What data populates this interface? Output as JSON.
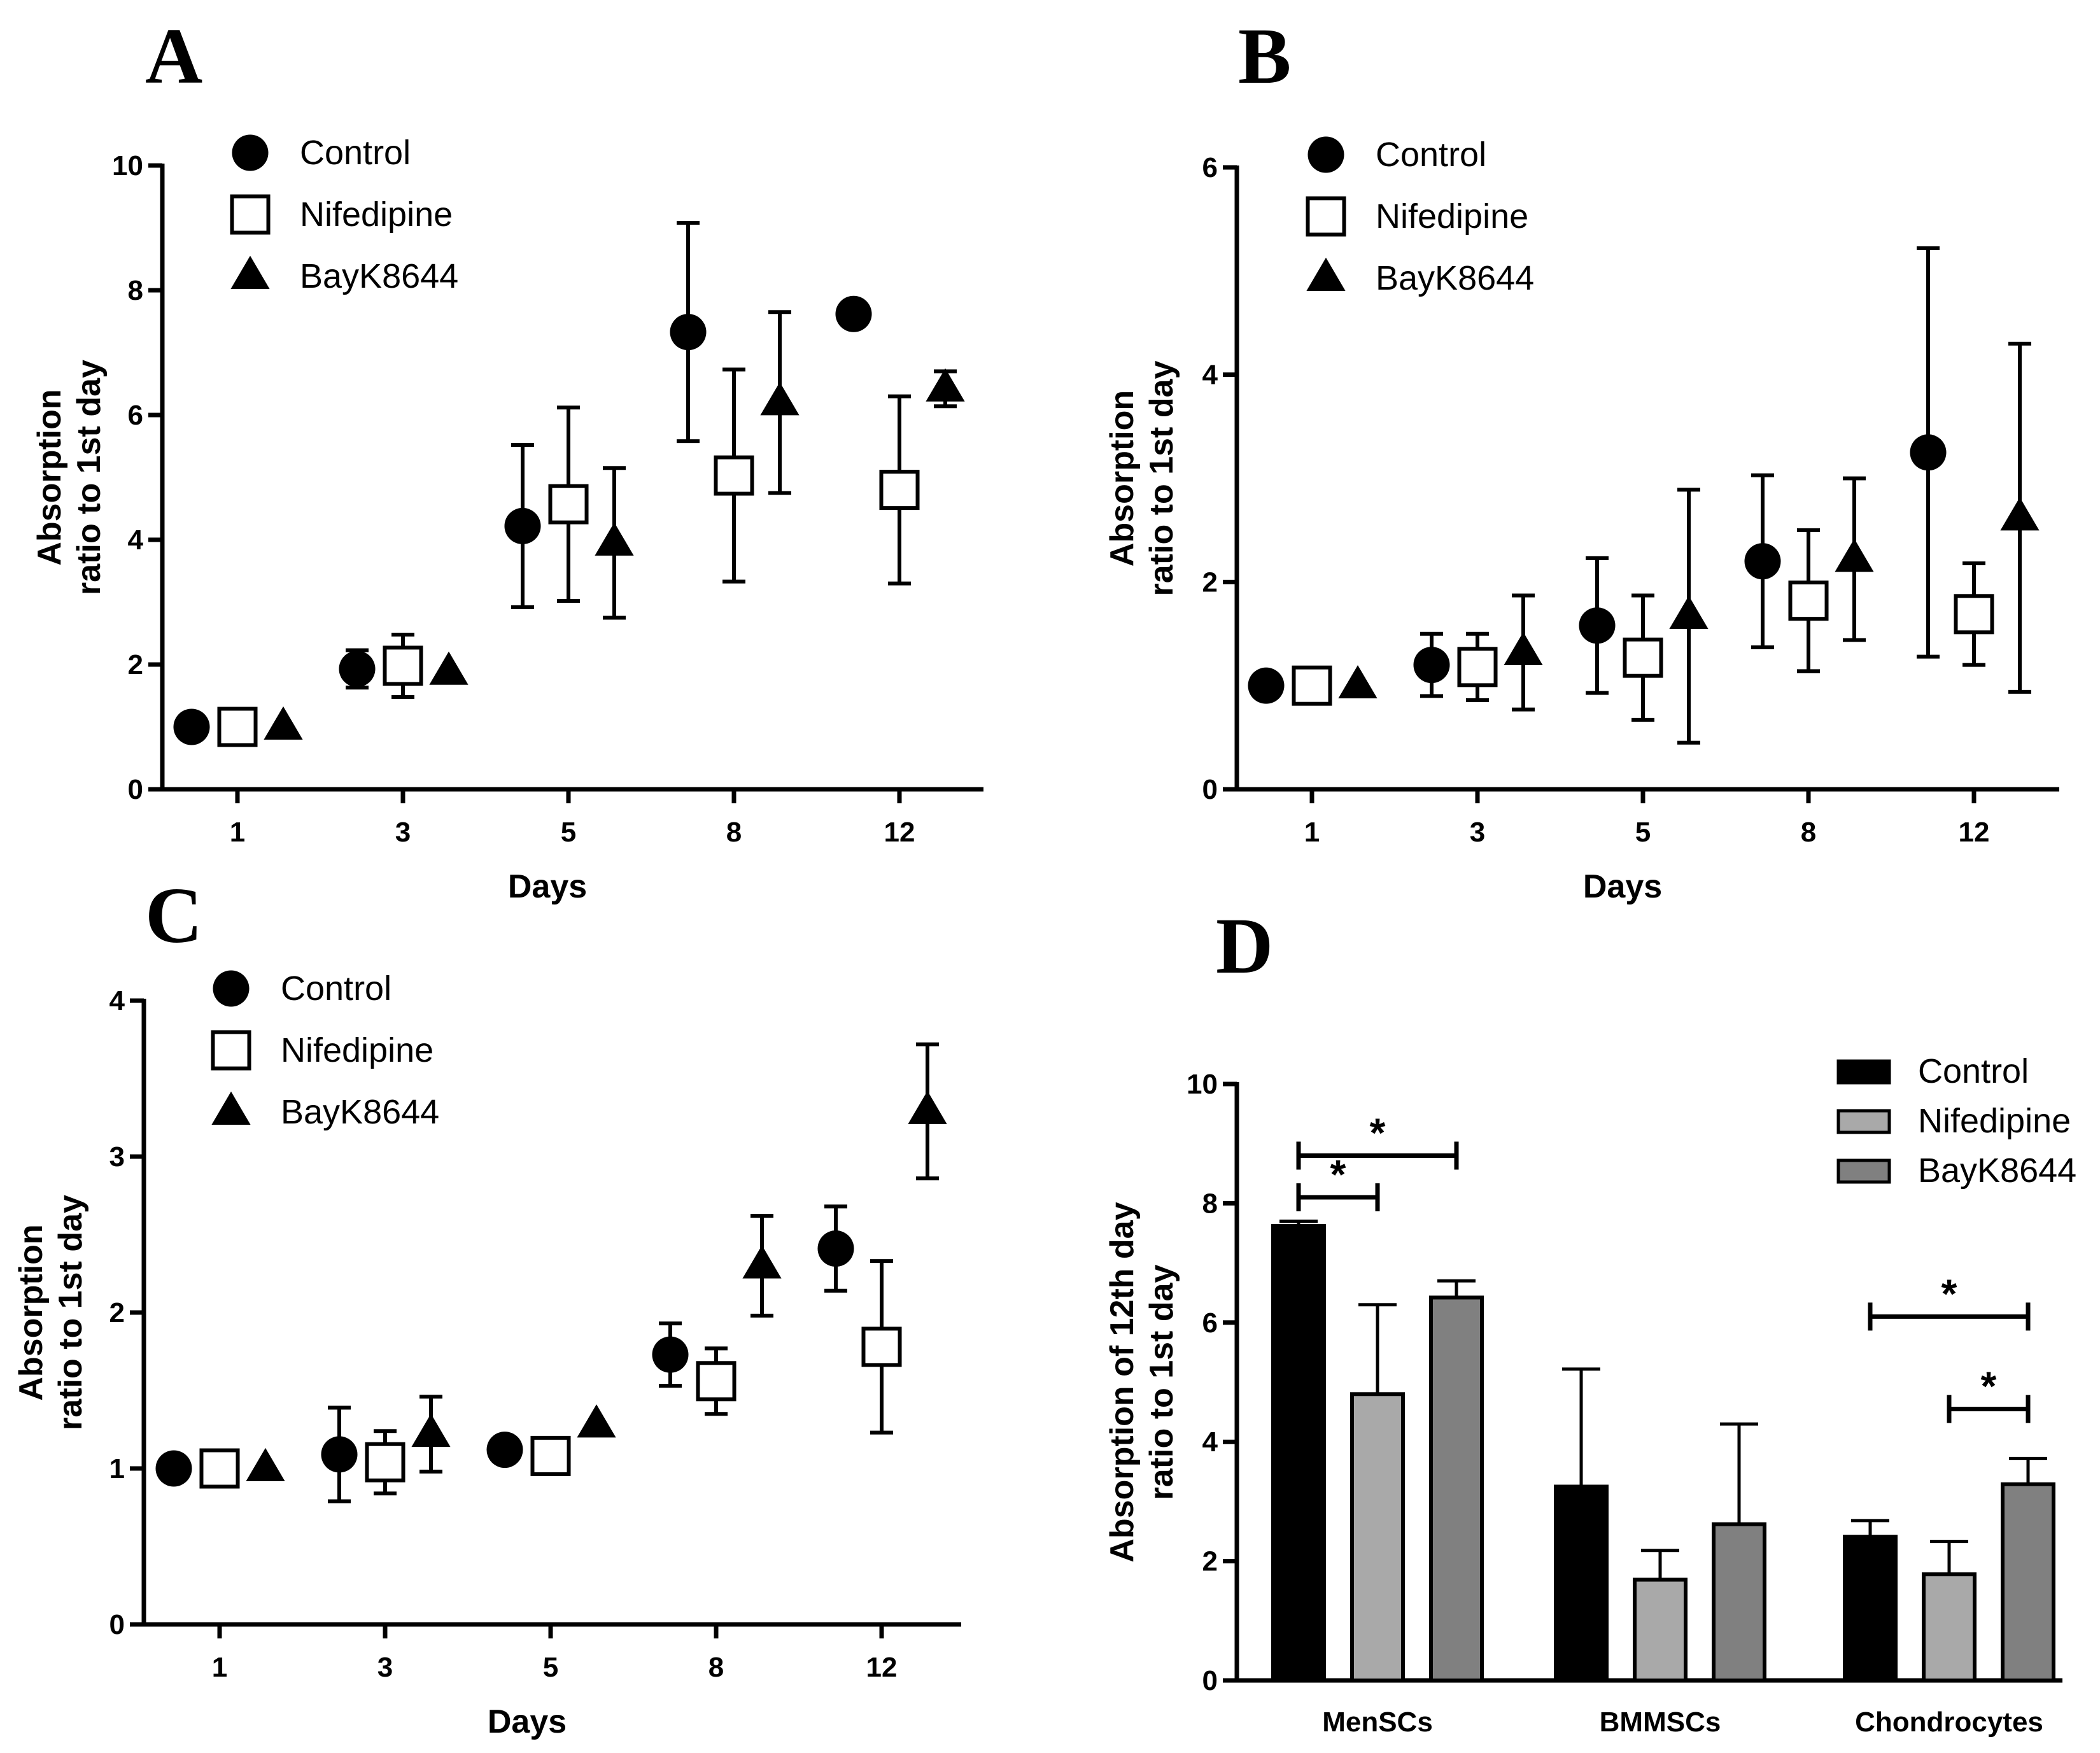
{
  "chart_data": [
    {
      "panel": "A",
      "type": "scatter",
      "title": "",
      "xlabel": "Days",
      "ylabel": [
        "Absorption",
        "ratio to 1st day"
      ],
      "ylim": [
        0,
        10
      ],
      "yticks": [
        "0",
        "2",
        "4",
        "6",
        "8",
        "10"
      ],
      "categories": [
        "1",
        "3",
        "5",
        "8",
        "12"
      ],
      "series": [
        {
          "name": "Control",
          "marker": "circle",
          "values": [
            1.0,
            1.93,
            4.22,
            7.33,
            7.62
          ],
          "err": [
            0,
            0.3,
            1.3,
            1.75,
            0
          ]
        },
        {
          "name": "Nifedipine",
          "marker": "square",
          "values": [
            1.0,
            1.98,
            4.57,
            5.03,
            4.8
          ],
          "err": [
            0,
            0.5,
            1.55,
            1.7,
            1.5
          ]
        },
        {
          "name": "BayK8644",
          "marker": "triangle",
          "values": [
            1.0,
            1.88,
            3.95,
            6.2,
            6.42
          ],
          "err": [
            0,
            0,
            1.2,
            1.45,
            0.28
          ]
        }
      ]
    },
    {
      "panel": "B",
      "type": "scatter",
      "title": "",
      "xlabel": "Days",
      "ylabel": [
        "Absorption",
        "ratio to 1st day"
      ],
      "ylim": [
        0,
        6
      ],
      "yticks": [
        "0",
        "2",
        "4",
        "6"
      ],
      "categories": [
        "1",
        "3",
        "5",
        "8",
        "12"
      ],
      "series": [
        {
          "name": "Control",
          "marker": "circle",
          "values": [
            1.0,
            1.2,
            1.58,
            2.2,
            3.25
          ],
          "err": [
            0,
            0.3,
            0.65,
            0.83,
            1.97
          ]
        },
        {
          "name": "Nifedipine",
          "marker": "square",
          "values": [
            1.0,
            1.18,
            1.27,
            1.82,
            1.69
          ],
          "err": [
            0,
            0.32,
            0.6,
            0.68,
            0.49
          ]
        },
        {
          "name": "BayK8644",
          "marker": "triangle",
          "values": [
            1.0,
            1.32,
            1.67,
            2.22,
            2.62
          ],
          "err": [
            0,
            0.55,
            1.22,
            0.78,
            1.68
          ]
        }
      ]
    },
    {
      "panel": "C",
      "type": "scatter",
      "title": "",
      "xlabel": "Days",
      "ylabel": [
        "Absorption",
        "ratio to 1st day"
      ],
      "ylim": [
        0,
        4
      ],
      "yticks": [
        "0",
        "1",
        "2",
        "3",
        "4"
      ],
      "categories": [
        "1",
        "3",
        "5",
        "8",
        "12"
      ],
      "series": [
        {
          "name": "Control",
          "marker": "circle",
          "values": [
            1.0,
            1.09,
            1.12,
            1.73,
            2.41
          ],
          "err": [
            0,
            0.3,
            0,
            0.2,
            0.27
          ]
        },
        {
          "name": "Nifedipine",
          "marker": "square",
          "values": [
            1.0,
            1.04,
            1.08,
            1.56,
            1.78
          ],
          "err": [
            0,
            0.2,
            0.06,
            0.21,
            0.55
          ]
        },
        {
          "name": "BayK8644",
          "marker": "triangle",
          "values": [
            1.0,
            1.22,
            1.28,
            2.3,
            3.29
          ],
          "err": [
            0,
            0.24,
            0,
            0.32,
            0.43
          ]
        }
      ]
    },
    {
      "panel": "D",
      "type": "bar",
      "title": "",
      "xlabel": "",
      "ylabel": [
        "Absorption of 12th day",
        "ratio to 1st day"
      ],
      "ylim": [
        0,
        10
      ],
      "yticks": [
        "0",
        "2",
        "4",
        "6",
        "8",
        "10"
      ],
      "categories": [
        "MenSCs",
        "BMMSCs",
        "Chondrocytes"
      ],
      "series": [
        {
          "name": "Control",
          "color": "#000000",
          "values": [
            7.62,
            3.25,
            2.41
          ],
          "err": [
            0.08,
            1.97,
            0.27
          ]
        },
        {
          "name": "Nifedipine",
          "color": "#a9a9a9",
          "values": [
            4.8,
            1.69,
            1.78
          ],
          "err": [
            1.5,
            0.49,
            0.55
          ]
        },
        {
          "name": "BayK8644",
          "color": "#808080",
          "values": [
            6.42,
            2.62,
            3.29
          ],
          "err": [
            0.28,
            1.68,
            0.43
          ]
        }
      ],
      "significance": [
        {
          "label": "*",
          "category": "MenSCs",
          "from": "Control",
          "to": "BayK8644",
          "y": 8.8
        },
        {
          "label": "*",
          "category": "MenSCs",
          "from": "Control",
          "to": "Nifedipine",
          "y": 8.1
        },
        {
          "label": "*",
          "category": "Chondrocytes",
          "from": "Control",
          "to": "BayK8644",
          "y": 6.1
        },
        {
          "label": "*",
          "category": "Chondrocytes",
          "from": "Nifedipine",
          "to": "BayK8644",
          "y": 4.55
        }
      ]
    }
  ]
}
